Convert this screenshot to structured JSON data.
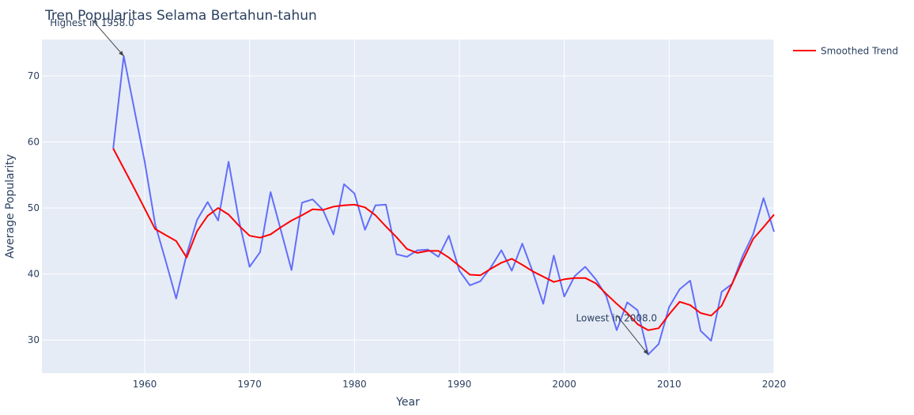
{
  "chart_data": {
    "type": "line",
    "title": "Tren Popularitas Selama Bertahun-tahun",
    "xlabel": "Year",
    "ylabel": "Average Popularity",
    "xlim": [
      1950.2,
      2020
    ],
    "ylim": [
      25,
      75.5
    ],
    "x_ticks": [
      1960,
      1970,
      1980,
      1990,
      2000,
      2010,
      2020
    ],
    "y_ticks": [
      30,
      40,
      50,
      60,
      70
    ],
    "grid": true,
    "legend_position": "top-right",
    "series": [
      {
        "name": "",
        "color": "#636efa",
        "x": [
          1957,
          1958,
          1960,
          1961,
          1962,
          1963,
          1964,
          1965,
          1966,
          1967,
          1968,
          1969,
          1970,
          1971,
          1972,
          1973,
          1974,
          1975,
          1976,
          1977,
          1978,
          1979,
          1980,
          1981,
          1982,
          1983,
          1984,
          1985,
          1986,
          1987,
          1988,
          1989,
          1990,
          1991,
          1992,
          1993,
          1994,
          1995,
          1996,
          1997,
          1998,
          1999,
          2000,
          2001,
          2002,
          2003,
          2004,
          2005,
          2006,
          2007,
          2008,
          2009,
          2010,
          2011,
          2012,
          2013,
          2014,
          2015,
          2016,
          2017,
          2018,
          2019,
          2020
        ],
        "y": [
          59,
          73,
          57,
          47.5,
          42,
          36.3,
          43,
          48.2,
          50.9,
          48.1,
          57,
          48,
          41.1,
          43.3,
          52.4,
          46.5,
          40.6,
          50.8,
          51.3,
          49.7,
          46,
          53.6,
          52.2,
          46.7,
          50.4,
          50.5,
          43,
          42.6,
          43.6,
          43.7,
          42.6,
          45.8,
          40.5,
          38.3,
          38.9,
          41,
          43.6,
          40.5,
          44.6,
          40.3,
          35.5,
          42.8,
          36.6,
          39.7,
          41.1,
          39.2,
          36.7,
          31.5,
          35.7,
          34.5,
          27.8,
          29.4,
          35,
          37.7,
          39,
          31.4,
          29.9,
          37.3,
          38.5,
          42.7,
          46,
          51.5,
          46.4
        ]
      },
      {
        "name": "Smoothed Trend",
        "color": "#ff0000",
        "x": [
          1957,
          1958,
          1959,
          1960,
          1961,
          1962,
          1963,
          1964,
          1965,
          1966,
          1967,
          1968,
          1969,
          1970,
          1971,
          1972,
          1973,
          1974,
          1975,
          1976,
          1977,
          1978,
          1979,
          1980,
          1981,
          1982,
          1983,
          1984,
          1985,
          1986,
          1987,
          1988,
          1989,
          1990,
          1991,
          1992,
          1993,
          1994,
          1995,
          1996,
          1997,
          1998,
          1999,
          2000,
          2001,
          2002,
          2003,
          2004,
          2005,
          2006,
          2007,
          2008,
          2009,
          2010,
          2011,
          2012,
          2013,
          2014,
          2015,
          2016,
          2017,
          2018,
          2019,
          2020
        ],
        "y": [
          59,
          56,
          53,
          49.9,
          46.8,
          45.9,
          45,
          42.5,
          46.5,
          48.8,
          50,
          49,
          47.3,
          45.8,
          45.5,
          46,
          47.1,
          48.1,
          48.9,
          49.8,
          49.7,
          50.2,
          50.4,
          50.5,
          50.1,
          48.9,
          47.2,
          45.6,
          43.8,
          43.2,
          43.5,
          43.5,
          42.5,
          41.2,
          39.9,
          39.8,
          40.8,
          41.7,
          42.3,
          41.4,
          40.4,
          39.6,
          38.8,
          39.2,
          39.4,
          39.4,
          38.6,
          37,
          35.5,
          34.1,
          32.4,
          31.5,
          31.8,
          33.9,
          35.8,
          35.3,
          34.1,
          33.7,
          35.2,
          38.5,
          42,
          45.3,
          47.1,
          49
        ]
      }
    ],
    "annotations": [
      {
        "text": "Highest in 1958.0",
        "x": 1958,
        "y": 73
      },
      {
        "text": "Lowest in 2008.0",
        "x": 2008,
        "y": 27.8
      }
    ]
  }
}
